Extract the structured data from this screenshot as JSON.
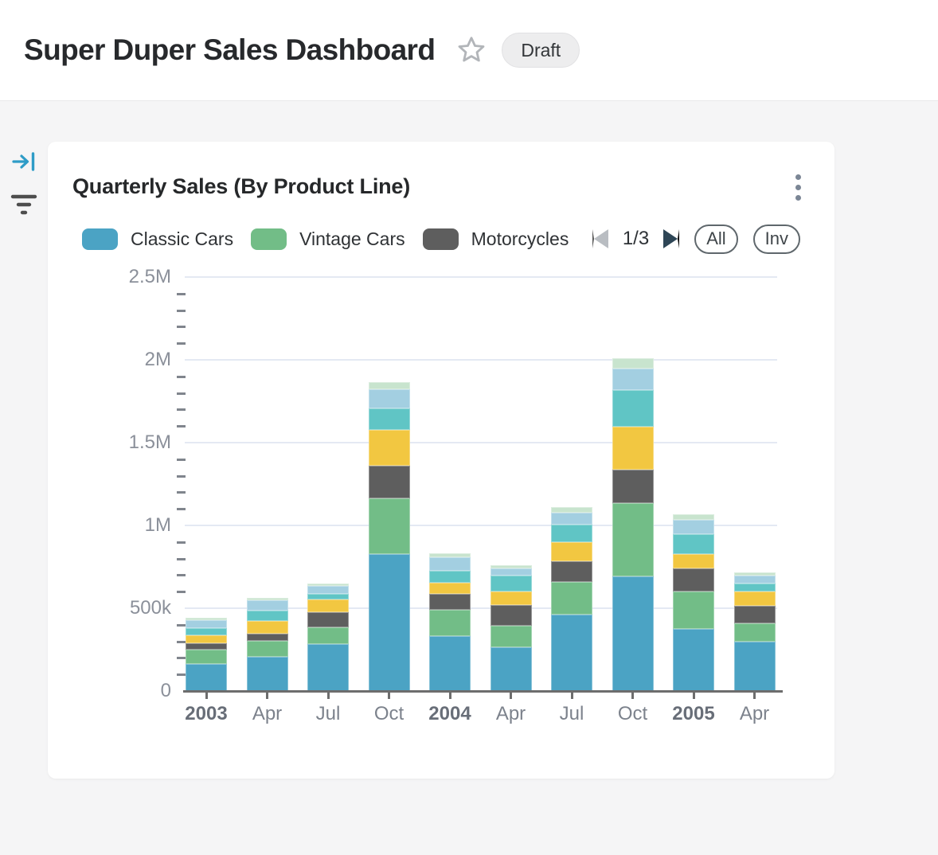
{
  "header": {
    "title": "Super Duper Sales Dashboard",
    "status_badge": "Draft"
  },
  "rail": {
    "expand_icon": "collapse-panel-arrow",
    "filter_icon": "filter-lines"
  },
  "card": {
    "title": "Quarterly Sales (By Product Line)",
    "legend": {
      "page_indicator": "1/3",
      "all_label": "All",
      "invert_label": "Inv"
    }
  },
  "chart_data": {
    "type": "bar",
    "stacked": true,
    "title": "Quarterly Sales (By Product Line)",
    "categories": [
      "2003",
      "Apr",
      "Jul",
      "Oct",
      "2004",
      "Apr",
      "Jul",
      "Oct",
      "2005",
      "Apr"
    ],
    "year_indices": [
      0,
      4,
      8
    ],
    "series": [
      {
        "name": "Classic Cars",
        "color": "#4BA3C4",
        "values": [
          165000,
          207000,
          282000,
          827000,
          333000,
          263000,
          463000,
          692000,
          375000,
          298000
        ]
      },
      {
        "name": "Vintage Cars",
        "color": "#72BD87",
        "values": [
          85000,
          96000,
          101000,
          338000,
          159000,
          131000,
          196000,
          442000,
          227000,
          112000
        ]
      },
      {
        "name": "Motorcycles",
        "color": "#5E5E5E",
        "values": [
          38000,
          43000,
          91000,
          196000,
          95000,
          125000,
          125000,
          205000,
          138000,
          106000
        ]
      },
      {
        "name": "",
        "color": "#F2C741",
        "values": [
          51000,
          77000,
          77000,
          216000,
          69000,
          83000,
          117000,
          256000,
          87000,
          87000
        ]
      },
      {
        "name": "",
        "color": "#60C5C5",
        "values": [
          40000,
          64000,
          35000,
          131000,
          72000,
          93000,
          103000,
          225000,
          122000,
          48000
        ]
      },
      {
        "name": "",
        "color": "#A3CFE1",
        "values": [
          48000,
          60000,
          48000,
          114000,
          80000,
          48000,
          74000,
          128000,
          84000,
          45000
        ]
      },
      {
        "name": "",
        "color": "#C8E4CE",
        "values": [
          14000,
          16000,
          13000,
          43000,
          23000,
          19000,
          32000,
          61000,
          35000,
          19000
        ]
      }
    ],
    "legend_visible": [
      "Classic Cars",
      "Vintage Cars",
      "Motorcycles"
    ],
    "y_ticks": [
      {
        "label": "0",
        "value": 0
      },
      {
        "label": "500k",
        "value": 500000
      },
      {
        "label": "1M",
        "value": 1000000
      },
      {
        "label": "1.5M",
        "value": 1500000
      },
      {
        "label": "2M",
        "value": 2000000
      },
      {
        "label": "2.5M",
        "value": 2500000
      }
    ],
    "y_minor_step": 100000,
    "ylim": [
      0,
      2500000
    ],
    "grid": "horizontal-major",
    "legend_position": "top"
  }
}
